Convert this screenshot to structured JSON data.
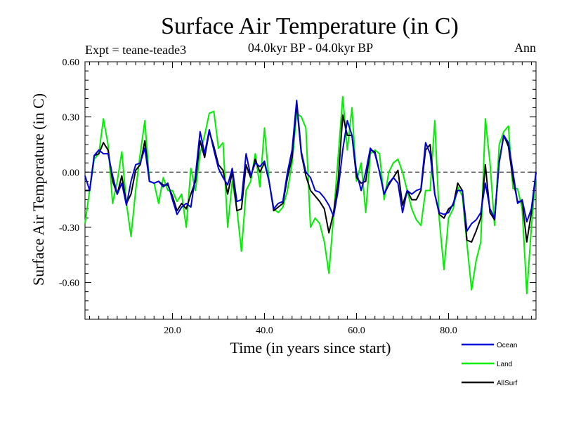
{
  "chart_data": {
    "type": "line",
    "title": "Surface Air Temperature (in C)",
    "subtitle": "04.0kyr BP - 04.0kyr BP",
    "experiment_label": "Expt = teane-teade3",
    "season_label": "Ann",
    "xlabel": "Time (in years since start)",
    "ylabel": "Surface Air Temperature (in C)",
    "xlim": [
      1,
      99
    ],
    "ylim": [
      -0.8,
      0.6
    ],
    "x_ticks": [
      {
        "value": 20,
        "label": "20.0"
      },
      {
        "value": 40,
        "label": "40.0"
      },
      {
        "value": 60,
        "label": "60.0"
      },
      {
        "value": 80,
        "label": "80.0"
      }
    ],
    "y_ticks": [
      {
        "value": 0.6,
        "label": "0.60"
      },
      {
        "value": 0.3,
        "label": "0.30"
      },
      {
        "value": 0.0,
        "label": "0.00"
      },
      {
        "value": -0.3,
        "label": "-0.30"
      },
      {
        "value": -0.6,
        "label": "-0.60"
      }
    ],
    "reference_line": 0.0,
    "x_start": 1,
    "series": [
      {
        "name": "Ocean",
        "color": "#0000dd",
        "values": [
          -0.02,
          -0.1,
          0.09,
          0.12,
          0.1,
          0.1,
          -0.02,
          -0.12,
          -0.06,
          -0.18,
          -0.05,
          0.04,
          0.05,
          0.13,
          -0.05,
          -0.06,
          -0.05,
          -0.08,
          -0.06,
          -0.15,
          -0.23,
          -0.19,
          -0.17,
          -0.19,
          -0.02,
          0.22,
          0.1,
          0.23,
          0.12,
          0.02,
          -0.03,
          -0.07,
          0.02,
          -0.16,
          -0.15,
          0.1,
          -0.02,
          0.05,
          0.03,
          0.06,
          -0.05,
          -0.2,
          -0.17,
          -0.16,
          0.0,
          0.12,
          0.39,
          0.11,
          0.0,
          -0.03,
          -0.1,
          -0.11,
          -0.14,
          -0.18,
          -0.24,
          -0.1,
          0.12,
          0.28,
          0.2,
          0.0,
          -0.1,
          0.0,
          0.13,
          0.1,
          0.0,
          -0.12,
          -0.06,
          -0.03,
          -0.06,
          -0.22,
          -0.1,
          -0.12,
          -0.1,
          -0.09,
          0.16,
          0.1,
          -0.12,
          -0.22,
          -0.23,
          -0.22,
          -0.17,
          -0.1,
          -0.1,
          -0.32,
          -0.28,
          -0.26,
          -0.22,
          -0.06,
          -0.2,
          -0.25,
          0.05,
          0.2,
          0.16,
          0.0,
          -0.17,
          -0.15,
          -0.27,
          -0.2,
          0.0
        ]
      },
      {
        "name": "Land",
        "color": "#00ee00",
        "values": [
          -0.28,
          -0.1,
          0.07,
          0.1,
          0.29,
          0.15,
          -0.17,
          -0.05,
          0.11,
          -0.17,
          -0.35,
          -0.1,
          0.1,
          0.28,
          -0.05,
          -0.06,
          -0.17,
          -0.03,
          -0.1,
          -0.1,
          -0.16,
          -0.12,
          -0.3,
          0.02,
          -0.1,
          0.1,
          0.2,
          0.32,
          0.33,
          0.13,
          0.16,
          -0.3,
          -0.05,
          -0.2,
          -0.43,
          -0.1,
          -0.05,
          0.1,
          -0.08,
          0.24,
          -0.05,
          -0.2,
          -0.22,
          -0.19,
          -0.1,
          0.05,
          0.32,
          0.3,
          0.24,
          -0.3,
          -0.25,
          -0.28,
          -0.38,
          -0.55,
          -0.24,
          0.08,
          0.41,
          0.12,
          0.35,
          -0.05,
          0.05,
          -0.22,
          0.1,
          0.12,
          0.1,
          -0.15,
          0.0,
          0.05,
          0.07,
          0.0,
          -0.1,
          -0.2,
          -0.26,
          -0.29,
          -0.1,
          -0.1,
          0.28,
          -0.26,
          -0.53,
          -0.25,
          -0.2,
          -0.08,
          -0.13,
          -0.39,
          -0.64,
          -0.48,
          -0.38,
          0.29,
          0.05,
          -0.29,
          0.15,
          0.22,
          0.25,
          -0.09,
          -0.09,
          -0.2,
          -0.66,
          -0.3,
          0.0
        ]
      },
      {
        "name": "AllSurf",
        "color": "#000000",
        "values": [
          -0.1,
          -0.1,
          0.09,
          0.1,
          0.16,
          0.12,
          -0.05,
          -0.12,
          -0.02,
          -0.17,
          -0.12,
          0.01,
          0.04,
          0.17,
          -0.05,
          -0.06,
          -0.05,
          -0.07,
          -0.07,
          -0.13,
          -0.21,
          -0.17,
          -0.2,
          -0.12,
          -0.05,
          0.17,
          0.08,
          0.22,
          0.14,
          0.04,
          0.01,
          -0.12,
          0.0,
          -0.21,
          -0.2,
          0.04,
          -0.03,
          0.07,
          0.0,
          0.05,
          -0.05,
          -0.21,
          -0.19,
          -0.17,
          -0.03,
          0.08,
          0.37,
          0.1,
          -0.02,
          -0.1,
          -0.13,
          -0.16,
          -0.2,
          -0.33,
          -0.22,
          -0.05,
          0.31,
          0.2,
          0.2,
          -0.03,
          -0.06,
          -0.05,
          0.12,
          0.11,
          0.0,
          -0.12,
          -0.07,
          -0.03,
          0.01,
          -0.18,
          -0.1,
          -0.15,
          -0.15,
          -0.1,
          0.12,
          0.15,
          -0.12,
          -0.23,
          -0.25,
          -0.2,
          -0.18,
          -0.06,
          -0.1,
          -0.37,
          -0.38,
          -0.32,
          -0.25,
          0.04,
          -0.22,
          -0.26,
          0.06,
          0.2,
          0.14,
          -0.04,
          -0.16,
          -0.16,
          -0.38,
          -0.22,
          0.0
        ]
      }
    ],
    "legend": [
      {
        "label": "Ocean",
        "color": "#0000dd"
      },
      {
        "label": "Land",
        "color": "#00ee00"
      },
      {
        "label": "AllSurf",
        "color": "#000000"
      }
    ]
  }
}
